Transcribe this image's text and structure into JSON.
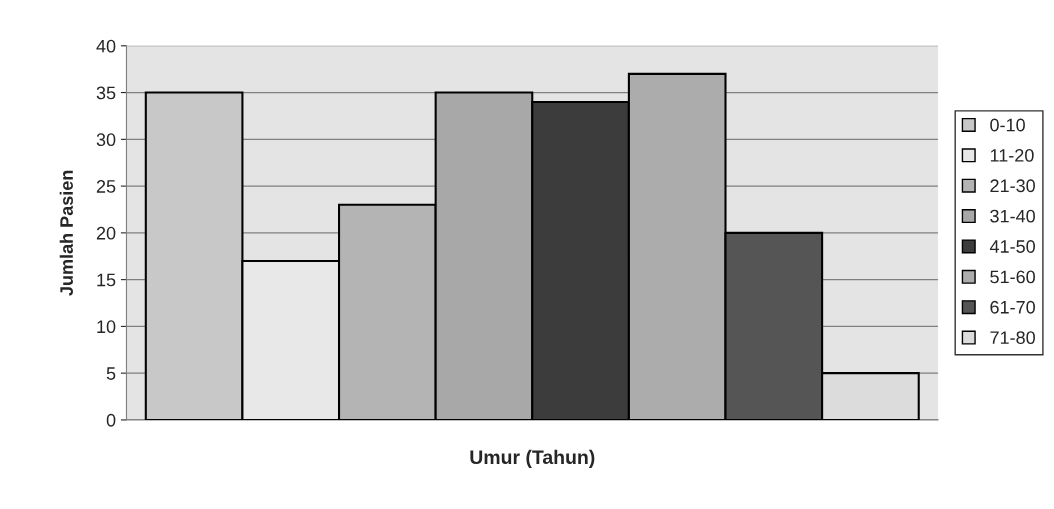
{
  "chart_data": {
    "type": "bar",
    "xlabel": "Umur (Tahun)",
    "ylabel": "Jumlah Pasien",
    "categories": [
      null
    ],
    "series": [
      {
        "name": "0-10",
        "color": "#c8c8c8",
        "values": [
          35
        ]
      },
      {
        "name": "11-20",
        "color": "#e8e8e8",
        "values": [
          17
        ]
      },
      {
        "name": "21-30",
        "color": "#b4b4b4",
        "values": [
          23
        ]
      },
      {
        "name": "31-40",
        "color": "#a8a8a8",
        "values": [
          35
        ]
      },
      {
        "name": "41-50",
        "color": "#3c3c3c",
        "values": [
          34
        ]
      },
      {
        "name": "51-60",
        "color": "#acacac",
        "values": [
          37
        ]
      },
      {
        "name": "61-70",
        "color": "#555555",
        "values": [
          20
        ]
      },
      {
        "name": "71-80",
        "color": "#dcdcdc",
        "values": [
          5
        ]
      }
    ],
    "ylim": [
      0,
      40
    ],
    "yticks": [
      0,
      5,
      10,
      15,
      20,
      25,
      30,
      35,
      40
    ],
    "grid": "y",
    "legend": "right"
  }
}
